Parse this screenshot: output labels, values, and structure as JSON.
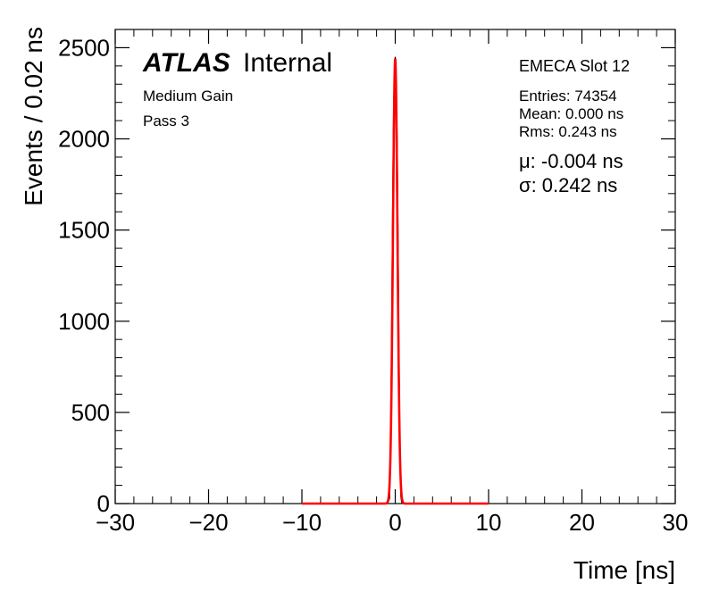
{
  "chart_data": {
    "type": "histogram",
    "title": "",
    "xlabel": "Time [ns]",
    "ylabel": "Events / 0.02 ns",
    "xlim": [
      -30,
      30
    ],
    "ylim": [
      0,
      2600
    ],
    "x_ticks": [
      -30,
      -20,
      -10,
      0,
      10,
      20,
      30
    ],
    "x_tick_labels": [
      "−30",
      "−20",
      "−10",
      "0",
      "10",
      "20",
      "30"
    ],
    "y_ticks": [
      0,
      500,
      1000,
      1500,
      2000,
      2500
    ],
    "y_tick_labels": [
      "0",
      "500",
      "1000",
      "1500",
      "2000",
      "2500"
    ],
    "bin_width": 0.02,
    "histogram": {
      "color": "#000000",
      "points": [
        [
          -1.0,
          0
        ],
        [
          -0.8,
          2
        ],
        [
          -0.6,
          30
        ],
        [
          -0.5,
          300
        ],
        [
          -0.4,
          850
        ],
        [
          -0.3,
          1500
        ],
        [
          -0.2,
          2050
        ],
        [
          -0.1,
          2350
        ],
        [
          0.0,
          2450
        ],
        [
          0.1,
          2300
        ],
        [
          0.2,
          2000
        ],
        [
          0.3,
          1450
        ],
        [
          0.4,
          800
        ],
        [
          0.5,
          300
        ],
        [
          0.6,
          40
        ],
        [
          0.7,
          5
        ],
        [
          0.9,
          0
        ]
      ]
    },
    "fit": {
      "color": "#ff0000",
      "range": [
        -10,
        10
      ],
      "mu": -0.004,
      "sigma": 0.242,
      "amplitude": 2440
    },
    "grid": false,
    "legend": "none"
  },
  "annotations": {
    "atlas_label": "ATLAS",
    "internal_label": "Internal",
    "gain": "Medium Gain",
    "pass": "Pass 3",
    "slot": "EMECA Slot 12",
    "entries": "Entries: 74354",
    "mean": "Mean: 0.000 ns",
    "rms": "Rms: 0.243 ns",
    "fit_mu": "μ: -0.004 ns",
    "fit_sigma": "σ: 0.242 ns"
  }
}
